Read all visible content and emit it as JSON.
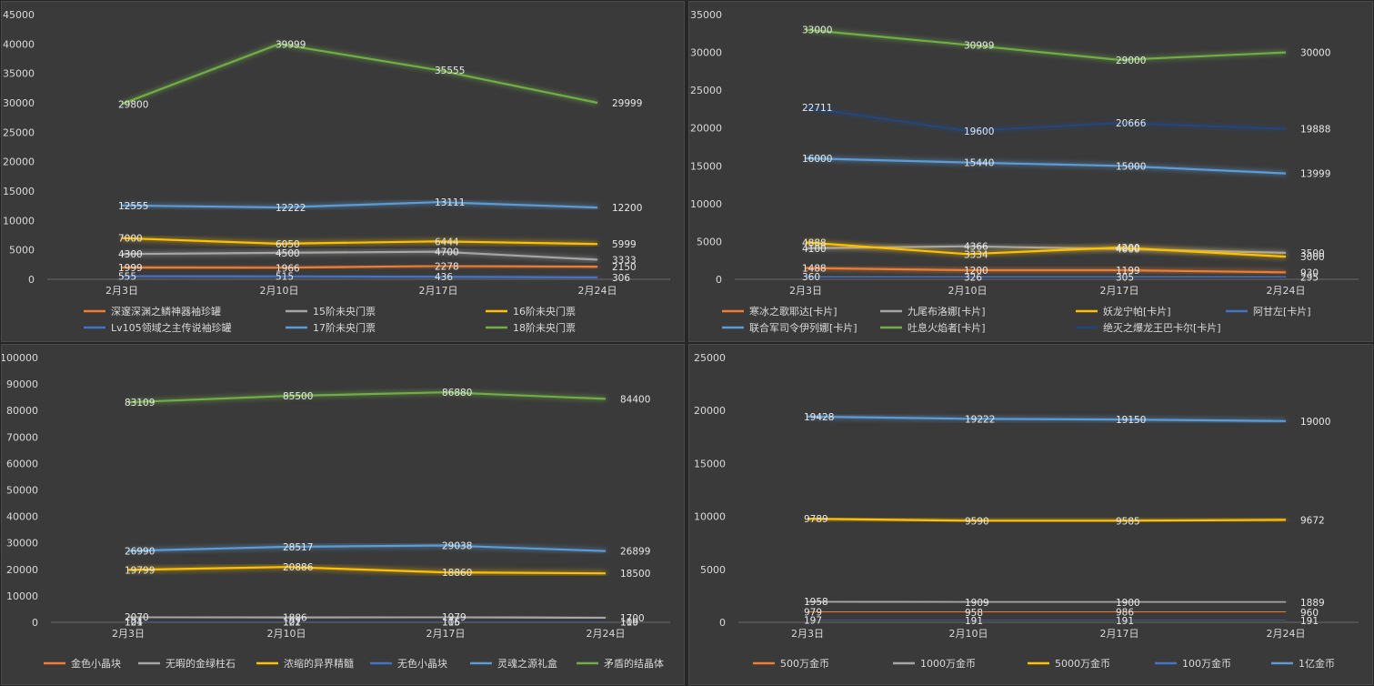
{
  "chart_data": [
    {
      "type": "line",
      "categories": [
        "2月3日",
        "2月10日",
        "2月17日",
        "2月24日"
      ],
      "ylim": [
        0,
        45000
      ],
      "yticks": [
        0,
        5000,
        10000,
        15000,
        20000,
        25000,
        30000,
        35000,
        40000,
        45000
      ],
      "grid": false,
      "legend_position": "bottom",
      "series": [
        {
          "name": "深邃深渊之鳞神器袖珍罐",
          "color": "#ed7d31",
          "values": [
            1999,
            1966,
            2278,
            2150
          ]
        },
        {
          "name": "15阶未央门票",
          "color": "#a5a5a5",
          "values": [
            4300,
            4500,
            4700,
            3333
          ]
        },
        {
          "name": "16阶未央门票",
          "color": "#ffc000",
          "values": [
            7000,
            6050,
            6444,
            5999
          ]
        },
        {
          "name": "Lv105领域之主传说袖珍罐",
          "color": "#4472c4",
          "values": [
            555,
            515,
            436,
            306
          ]
        },
        {
          "name": "17阶未央门票",
          "color": "#5b9bd5",
          "values": [
            12555,
            12222,
            13111,
            12200
          ]
        },
        {
          "name": "18阶未央门票",
          "color": "#70ad47",
          "values": [
            29800,
            39999,
            35555,
            29999
          ]
        }
      ]
    },
    {
      "type": "line",
      "categories": [
        "2月3日",
        "2月10日",
        "2月17日",
        "2月24日"
      ],
      "ylim": [
        0,
        35000
      ],
      "yticks": [
        0,
        5000,
        10000,
        15000,
        20000,
        25000,
        30000,
        35000
      ],
      "grid": false,
      "legend_position": "bottom",
      "series": [
        {
          "name": "寒冰之歌耶达[卡片]",
          "color": "#ed7d31",
          "values": [
            1488,
            1200,
            1199,
            930
          ]
        },
        {
          "name": "九尾布洛娜[卡片]",
          "color": "#a5a5a5",
          "values": [
            4100,
            4366,
            4000,
            3500
          ]
        },
        {
          "name": "妖龙宁帕[卡片]",
          "color": "#ffc000",
          "values": [
            4888,
            3334,
            4200,
            3000
          ]
        },
        {
          "name": "阿甘左[卡片]",
          "color": "#4472c4",
          "values": [
            360,
            326,
            305,
            295
          ]
        },
        {
          "name": "联合军司令伊列娜[卡片]",
          "color": "#5b9bd5",
          "values": [
            16000,
            15440,
            15000,
            13999
          ]
        },
        {
          "name": "吐息火焰者[卡片]",
          "color": "#70ad47",
          "values": [
            33000,
            30999,
            29000,
            30000
          ]
        },
        {
          "name": "绝灭之爆龙王巴卡尔[卡片]",
          "color": "#264478",
          "values": [
            22711,
            19600,
            20666,
            19888
          ]
        }
      ]
    },
    {
      "type": "line",
      "categories": [
        "2月3日",
        "2月10日",
        "2月17日",
        "2月24日"
      ],
      "ylim": [
        0,
        100000
      ],
      "yticks": [
        0,
        10000,
        20000,
        30000,
        40000,
        50000,
        60000,
        70000,
        80000,
        90000,
        100000
      ],
      "grid": false,
      "legend_position": "bottom",
      "series": [
        {
          "name": "金色小晶块",
          "color": "#ed7d31",
          "values": [
            104,
            101,
            105,
            100
          ]
        },
        {
          "name": "无暇的金绿柱石",
          "color": "#a5a5a5",
          "values": [
            2070,
            1886,
            1979,
            1700
          ]
        },
        {
          "name": "浓缩的异界精髓",
          "color": "#ffc000",
          "values": [
            19799,
            20886,
            18860,
            18500
          ]
        },
        {
          "name": "无色小晶块",
          "color": "#4472c4",
          "values": [
            121,
            122,
            116,
            119
          ]
        },
        {
          "name": "灵魂之源礼盒",
          "color": "#5b9bd5",
          "values": [
            26990,
            28517,
            29038,
            26899
          ]
        },
        {
          "name": "矛盾的结晶体",
          "color": "#70ad47",
          "values": [
            83109,
            85500,
            86880,
            84400
          ]
        }
      ]
    },
    {
      "type": "line",
      "categories": [
        "2月3日",
        "2月10日",
        "2月17日",
        "2月24日"
      ],
      "ylim": [
        0,
        25000
      ],
      "yticks": [
        0,
        5000,
        10000,
        15000,
        20000,
        25000
      ],
      "grid": false,
      "legend_position": "bottom",
      "series": [
        {
          "name": "500万金币",
          "color": "#ed7d31",
          "values": [
            979,
            958,
            986,
            960
          ]
        },
        {
          "name": "1000万金币",
          "color": "#a5a5a5",
          "values": [
            1958,
            1909,
            1900,
            1889
          ]
        },
        {
          "name": "5000万金币",
          "color": "#ffc000",
          "values": [
            9789,
            9590,
            9585,
            9672
          ]
        },
        {
          "name": "100万金币",
          "color": "#4472c4",
          "values": [
            197,
            191,
            191,
            191
          ]
        },
        {
          "name": "1亿金币",
          "color": "#5b9bd5",
          "values": [
            19428,
            19222,
            19150,
            19000
          ]
        }
      ]
    }
  ]
}
